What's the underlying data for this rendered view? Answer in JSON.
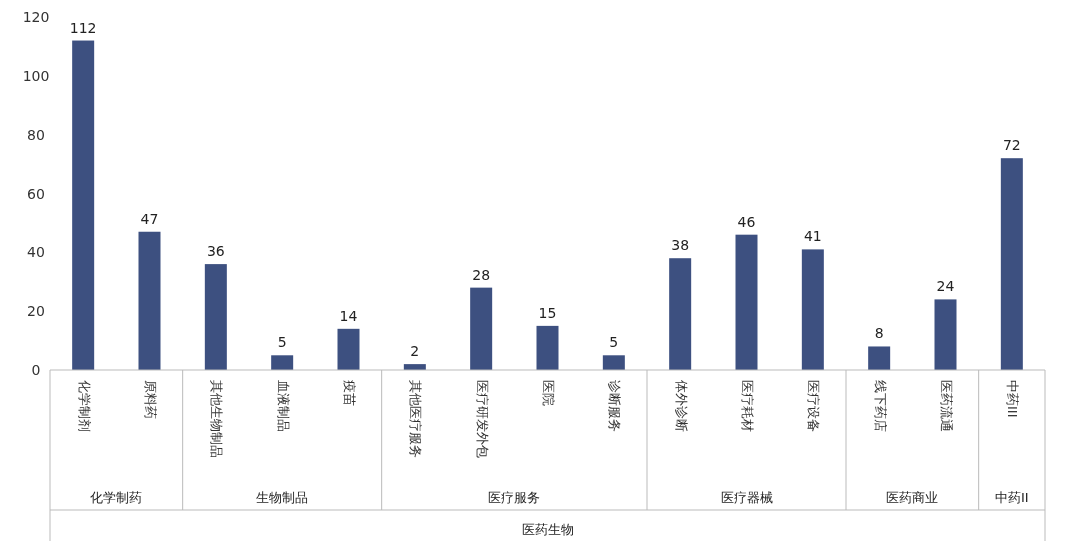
{
  "chart_data": {
    "type": "bar",
    "categories": [
      "化学制剂",
      "原料药",
      "其他生物制品",
      "血液制品",
      "疫苗",
      "其他医疗服务",
      "医疗研发外包",
      "医院",
      "诊断服务",
      "体外诊断",
      "医疗耗材",
      "医疗设备",
      "线下药店",
      "医药流通",
      "中药III"
    ],
    "values": [
      112,
      47,
      36,
      5,
      14,
      2,
      28,
      15,
      5,
      38,
      46,
      41,
      8,
      24,
      72
    ],
    "color": "#3d5080",
    "ylim": [
      0,
      120
    ],
    "yticks": [
      0,
      20,
      40,
      60,
      80,
      100,
      120
    ],
    "grid": false,
    "data_labels": true,
    "xlabel": "医药生物",
    "annotations": [
      "化学制药",
      "生物制品",
      "医疗服务",
      "医疗器械",
      "医药商业",
      "中药II"
    ]
  }
}
